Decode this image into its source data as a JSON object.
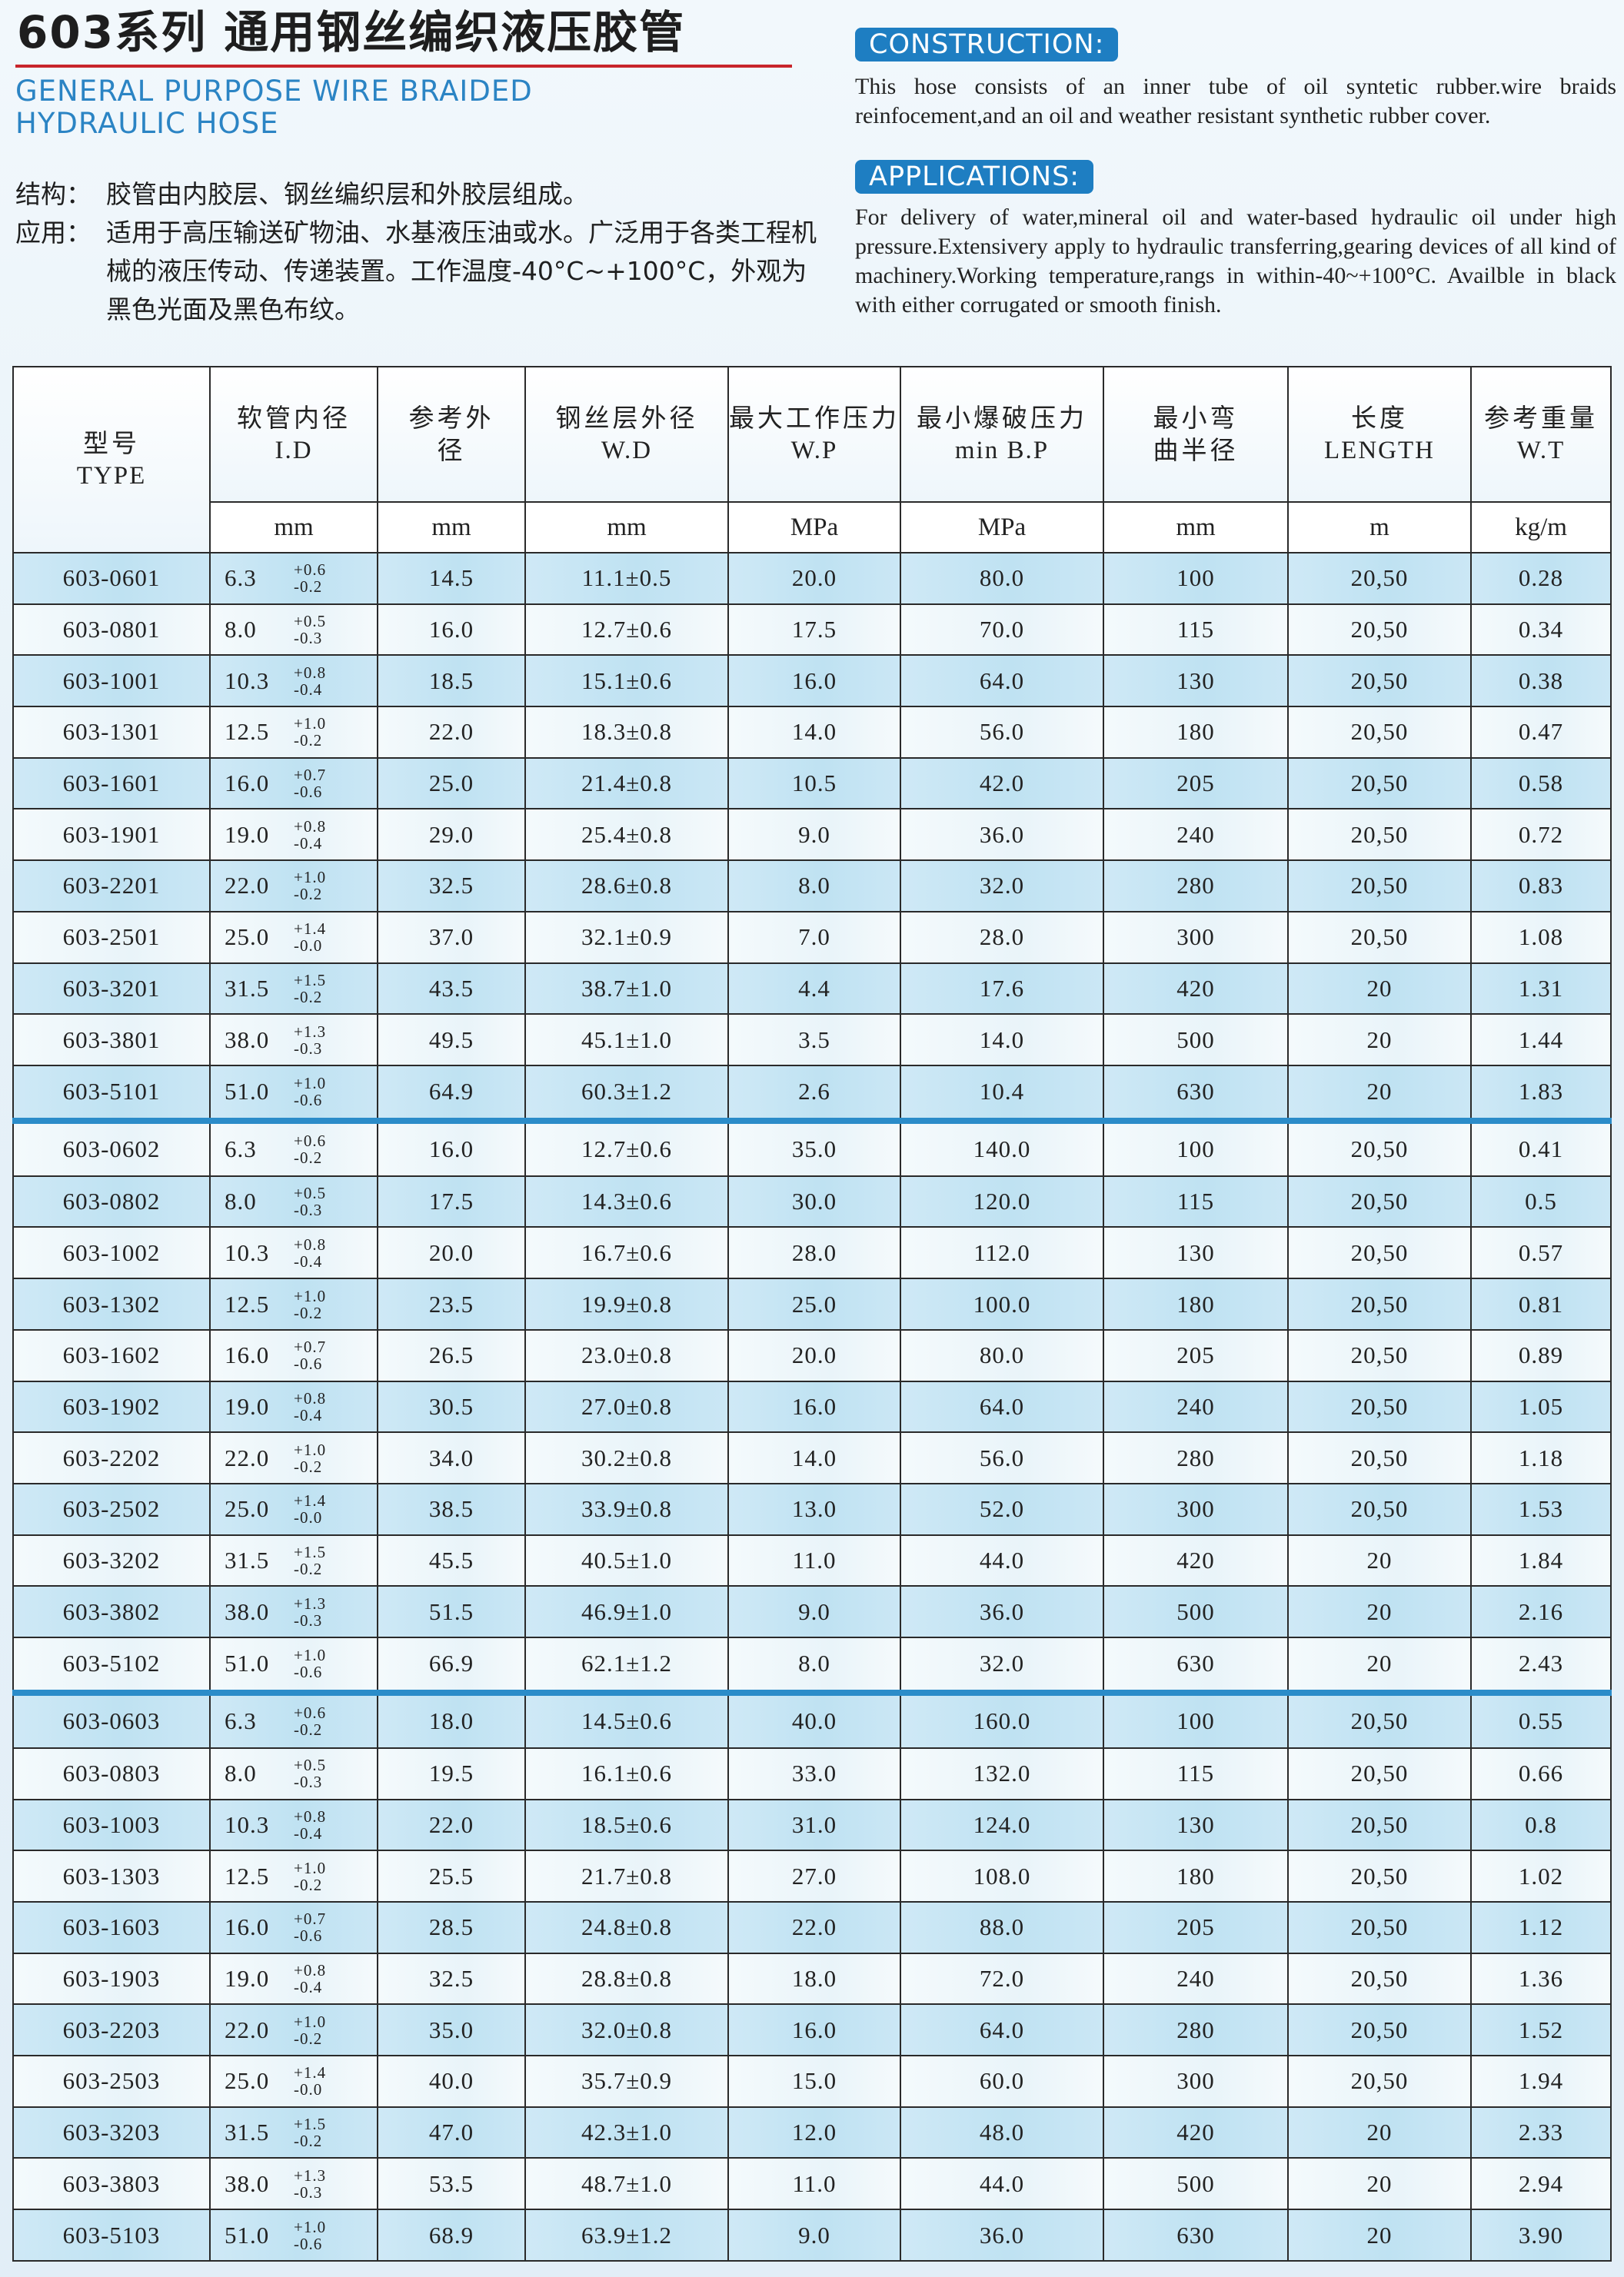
{
  "header": {
    "title_cn": "603系列 通用钢丝编织液压胶管",
    "title_en_line1": "GENERAL PURPOSE WIRE BRAIDED",
    "title_en_line2": "HYDRAULIC HOSE",
    "structure_label": "结构：",
    "structure_text": "胶管由内胶层、钢丝编织层和外胶层组成。",
    "application_label": "应用：",
    "application_text": "适用于高压输送矿物油、水基液压油或水。广泛用于各类工程机械的液压传动、传递装置。工作温度-40°C~+100°C，外观为黑色光面及黑色布纹。",
    "construction_badge": "CONSTRUCTION:",
    "construction_text": "This hose consists of an inner tube of oil syntetic rubber.wire braids reinfocement,and an oil and weather resistant synthetic rubber cover.",
    "applications_badge": "APPLICATIONS:",
    "applications_text": "For delivery of water,mineral oil and water-based hydraulic oil under high pressure.Extensivery apply to hydraulic transferring,gearing devices of all kind of machinery.Working temperature,rangs in within-40~+100°C. Availble in black with either corrugated or smooth finish."
  },
  "table": {
    "headers": [
      {
        "cn": "型号",
        "en": "TYPE"
      },
      {
        "cn": "软管内径",
        "en": "I.D",
        "unit": "mm"
      },
      {
        "cn": "参考外",
        "en": "径",
        "unit": "mm"
      },
      {
        "cn": "钢丝层外径",
        "en": "W.D",
        "unit": "mm"
      },
      {
        "cn": "最大工作压力",
        "en": "W.P",
        "unit": "MPa"
      },
      {
        "cn": "最小爆破压力",
        "en": "min B.P",
        "unit": "MPa"
      },
      {
        "cn": "最小弯",
        "en": "曲半径",
        "unit": "mm"
      },
      {
        "cn": "长度",
        "en": "LENGTH",
        "unit": "m"
      },
      {
        "cn": "参考重量",
        "en": "W.T",
        "unit": "kg/m"
      }
    ],
    "rows": [
      {
        "type": "603-0601",
        "id": "6.3",
        "tol_plus": "+0.6",
        "tol_minus": "-0.2",
        "od": "14.5",
        "wd": "11.1±0.5",
        "wp": "20.0",
        "bp": "80.0",
        "bend": "100",
        "length": "20,50",
        "wt": "0.28"
      },
      {
        "type": "603-0801",
        "id": "8.0",
        "tol_plus": "+0.5",
        "tol_minus": "-0.3",
        "od": "16.0",
        "wd": "12.7±0.6",
        "wp": "17.5",
        "bp": "70.0",
        "bend": "115",
        "length": "20,50",
        "wt": "0.34"
      },
      {
        "type": "603-1001",
        "id": "10.3",
        "tol_plus": "+0.8",
        "tol_minus": "-0.4",
        "od": "18.5",
        "wd": "15.1±0.6",
        "wp": "16.0",
        "bp": "64.0",
        "bend": "130",
        "length": "20,50",
        "wt": "0.38"
      },
      {
        "type": "603-1301",
        "id": "12.5",
        "tol_plus": "+1.0",
        "tol_minus": "-0.2",
        "od": "22.0",
        "wd": "18.3±0.8",
        "wp": "14.0",
        "bp": "56.0",
        "bend": "180",
        "length": "20,50",
        "wt": "0.47"
      },
      {
        "type": "603-1601",
        "id": "16.0",
        "tol_plus": "+0.7",
        "tol_minus": "-0.6",
        "od": "25.0",
        "wd": "21.4±0.8",
        "wp": "10.5",
        "bp": "42.0",
        "bend": "205",
        "length": "20,50",
        "wt": "0.58"
      },
      {
        "type": "603-1901",
        "id": "19.0",
        "tol_plus": "+0.8",
        "tol_minus": "-0.4",
        "od": "29.0",
        "wd": "25.4±0.8",
        "wp": "9.0",
        "bp": "36.0",
        "bend": "240",
        "length": "20,50",
        "wt": "0.72"
      },
      {
        "type": "603-2201",
        "id": "22.0",
        "tol_plus": "+1.0",
        "tol_minus": "-0.2",
        "od": "32.5",
        "wd": "28.6±0.8",
        "wp": "8.0",
        "bp": "32.0",
        "bend": "280",
        "length": "20,50",
        "wt": "0.83"
      },
      {
        "type": "603-2501",
        "id": "25.0",
        "tol_plus": "+1.4",
        "tol_minus": "-0.0",
        "od": "37.0",
        "wd": "32.1±0.9",
        "wp": "7.0",
        "bp": "28.0",
        "bend": "300",
        "length": "20,50",
        "wt": "1.08"
      },
      {
        "type": "603-3201",
        "id": "31.5",
        "tol_plus": "+1.5",
        "tol_minus": "-0.2",
        "od": "43.5",
        "wd": "38.7±1.0",
        "wp": "4.4",
        "bp": "17.6",
        "bend": "420",
        "length": "20",
        "wt": "1.31"
      },
      {
        "type": "603-3801",
        "id": "38.0",
        "tol_plus": "+1.3",
        "tol_minus": "-0.3",
        "od": "49.5",
        "wd": "45.1±1.0",
        "wp": "3.5",
        "bp": "14.0",
        "bend": "500",
        "length": "20",
        "wt": "1.44"
      },
      {
        "type": "603-5101",
        "id": "51.0",
        "tol_plus": "+1.0",
        "tol_minus": "-0.6",
        "od": "64.9",
        "wd": "60.3±1.2",
        "wp": "2.6",
        "bp": "10.4",
        "bend": "630",
        "length": "20",
        "wt": "1.83"
      },
      {
        "type": "603-0602",
        "id": "6.3",
        "tol_plus": "+0.6",
        "tol_minus": "-0.2",
        "od": "16.0",
        "wd": "12.7±0.6",
        "wp": "35.0",
        "bp": "140.0",
        "bend": "100",
        "length": "20,50",
        "wt": "0.41"
      },
      {
        "type": "603-0802",
        "id": "8.0",
        "tol_plus": "+0.5",
        "tol_minus": "-0.3",
        "od": "17.5",
        "wd": "14.3±0.6",
        "wp": "30.0",
        "bp": "120.0",
        "bend": "115",
        "length": "20,50",
        "wt": "0.5"
      },
      {
        "type": "603-1002",
        "id": "10.3",
        "tol_plus": "+0.8",
        "tol_minus": "-0.4",
        "od": "20.0",
        "wd": "16.7±0.6",
        "wp": "28.0",
        "bp": "112.0",
        "bend": "130",
        "length": "20,50",
        "wt": "0.57"
      },
      {
        "type": "603-1302",
        "id": "12.5",
        "tol_plus": "+1.0",
        "tol_minus": "-0.2",
        "od": "23.5",
        "wd": "19.9±0.8",
        "wp": "25.0",
        "bp": "100.0",
        "bend": "180",
        "length": "20,50",
        "wt": "0.81"
      },
      {
        "type": "603-1602",
        "id": "16.0",
        "tol_plus": "+0.7",
        "tol_minus": "-0.6",
        "od": "26.5",
        "wd": "23.0±0.8",
        "wp": "20.0",
        "bp": "80.0",
        "bend": "205",
        "length": "20,50",
        "wt": "0.89"
      },
      {
        "type": "603-1902",
        "id": "19.0",
        "tol_plus": "+0.8",
        "tol_minus": "-0.4",
        "od": "30.5",
        "wd": "27.0±0.8",
        "wp": "16.0",
        "bp": "64.0",
        "bend": "240",
        "length": "20,50",
        "wt": "1.05"
      },
      {
        "type": "603-2202",
        "id": "22.0",
        "tol_plus": "+1.0",
        "tol_minus": "-0.2",
        "od": "34.0",
        "wd": "30.2±0.8",
        "wp": "14.0",
        "bp": "56.0",
        "bend": "280",
        "length": "20,50",
        "wt": "1.18"
      },
      {
        "type": "603-2502",
        "id": "25.0",
        "tol_plus": "+1.4",
        "tol_minus": "-0.0",
        "od": "38.5",
        "wd": "33.9±0.8",
        "wp": "13.0",
        "bp": "52.0",
        "bend": "300",
        "length": "20,50",
        "wt": "1.53"
      },
      {
        "type": "603-3202",
        "id": "31.5",
        "tol_plus": "+1.5",
        "tol_minus": "-0.2",
        "od": "45.5",
        "wd": "40.5±1.0",
        "wp": "11.0",
        "bp": "44.0",
        "bend": "420",
        "length": "20",
        "wt": "1.84"
      },
      {
        "type": "603-3802",
        "id": "38.0",
        "tol_plus": "+1.3",
        "tol_minus": "-0.3",
        "od": "51.5",
        "wd": "46.9±1.0",
        "wp": "9.0",
        "bp": "36.0",
        "bend": "500",
        "length": "20",
        "wt": "2.16"
      },
      {
        "type": "603-5102",
        "id": "51.0",
        "tol_plus": "+1.0",
        "tol_minus": "-0.6",
        "od": "66.9",
        "wd": "62.1±1.2",
        "wp": "8.0",
        "bp": "32.0",
        "bend": "630",
        "length": "20",
        "wt": "2.43"
      },
      {
        "type": "603-0603",
        "id": "6.3",
        "tol_plus": "+0.6",
        "tol_minus": "-0.2",
        "od": "18.0",
        "wd": "14.5±0.6",
        "wp": "40.0",
        "bp": "160.0",
        "bend": "100",
        "length": "20,50",
        "wt": "0.55"
      },
      {
        "type": "603-0803",
        "id": "8.0",
        "tol_plus": "+0.5",
        "tol_minus": "-0.3",
        "od": "19.5",
        "wd": "16.1±0.6",
        "wp": "33.0",
        "bp": "132.0",
        "bend": "115",
        "length": "20,50",
        "wt": "0.66"
      },
      {
        "type": "603-1003",
        "id": "10.3",
        "tol_plus": "+0.8",
        "tol_minus": "-0.4",
        "od": "22.0",
        "wd": "18.5±0.6",
        "wp": "31.0",
        "bp": "124.0",
        "bend": "130",
        "length": "20,50",
        "wt": "0.8"
      },
      {
        "type": "603-1303",
        "id": "12.5",
        "tol_plus": "+1.0",
        "tol_minus": "-0.2",
        "od": "25.5",
        "wd": "21.7±0.8",
        "wp": "27.0",
        "bp": "108.0",
        "bend": "180",
        "length": "20,50",
        "wt": "1.02"
      },
      {
        "type": "603-1603",
        "id": "16.0",
        "tol_plus": "+0.7",
        "tol_minus": "-0.6",
        "od": "28.5",
        "wd": "24.8±0.8",
        "wp": "22.0",
        "bp": "88.0",
        "bend": "205",
        "length": "20,50",
        "wt": "1.12"
      },
      {
        "type": "603-1903",
        "id": "19.0",
        "tol_plus": "+0.8",
        "tol_minus": "-0.4",
        "od": "32.5",
        "wd": "28.8±0.8",
        "wp": "18.0",
        "bp": "72.0",
        "bend": "240",
        "length": "20,50",
        "wt": "1.36"
      },
      {
        "type": "603-2203",
        "id": "22.0",
        "tol_plus": "+1.0",
        "tol_minus": "-0.2",
        "od": "35.0",
        "wd": "32.0±0.8",
        "wp": "16.0",
        "bp": "64.0",
        "bend": "280",
        "length": "20,50",
        "wt": "1.52"
      },
      {
        "type": "603-2503",
        "id": "25.0",
        "tol_plus": "+1.4",
        "tol_minus": "-0.0",
        "od": "40.0",
        "wd": "35.7±0.9",
        "wp": "15.0",
        "bp": "60.0",
        "bend": "300",
        "length": "20,50",
        "wt": "1.94"
      },
      {
        "type": "603-3203",
        "id": "31.5",
        "tol_plus": "+1.5",
        "tol_minus": "-0.2",
        "od": "47.0",
        "wd": "42.3±1.0",
        "wp": "12.0",
        "bp": "48.0",
        "bend": "420",
        "length": "20",
        "wt": "2.33"
      },
      {
        "type": "603-3803",
        "id": "38.0",
        "tol_plus": "+1.3",
        "tol_minus": "-0.3",
        "od": "53.5",
        "wd": "48.7±1.0",
        "wp": "11.0",
        "bp": "44.0",
        "bend": "500",
        "length": "20",
        "wt": "2.94"
      },
      {
        "type": "603-5103",
        "id": "51.0",
        "tol_plus": "+1.0",
        "tol_minus": "-0.6",
        "od": "68.9",
        "wd": "63.9±1.2",
        "wp": "9.0",
        "bp": "36.0",
        "bend": "630",
        "length": "20",
        "wt": "3.90"
      }
    ]
  }
}
